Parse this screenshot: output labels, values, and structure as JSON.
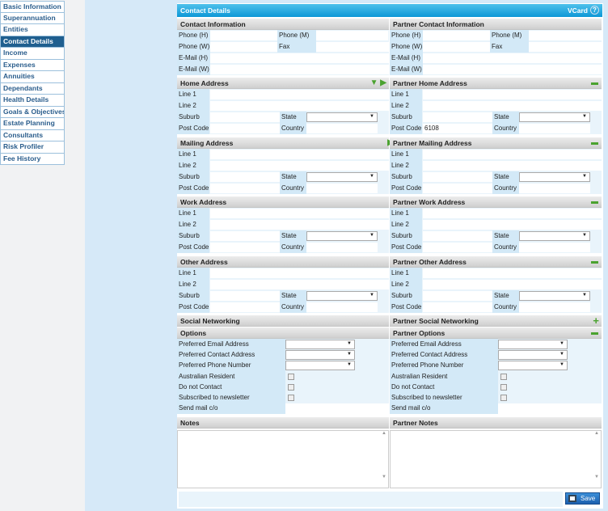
{
  "sidebar": {
    "items": [
      "Basic Information",
      "Superannuation",
      "Entities",
      "Contact Details",
      "Income",
      "Expenses",
      "Annuities",
      "Dependants",
      "Health Details",
      "Goals & Objectives",
      "Estate Planning",
      "Consultants",
      "Risk Profiler",
      "Fee History"
    ],
    "active": "Contact Details"
  },
  "title": "Contact Details",
  "vcard": "VCard",
  "help": "?",
  "contact": {
    "left_title": "Contact Information",
    "right_title": "Partner Contact Information",
    "phone_h": "Phone (H)",
    "phone_m": "Phone (M)",
    "phone_w": "Phone (W)",
    "fax": "Fax",
    "email_h": "E-Mail (H)",
    "email_w": "E-Mail (W)"
  },
  "address_labels": {
    "line1": "Line 1",
    "line2": "Line 2",
    "suburb": "Suburb",
    "state": "State",
    "postcode": "Post Code",
    "country": "Country"
  },
  "addresses": [
    {
      "left": "Home Address",
      "right": "Partner Home Address",
      "left_icon": "expand",
      "right_postcode": "6108"
    },
    {
      "left": "Mailing Address",
      "right": "Partner Mailing Address",
      "left_icon": "arrow"
    },
    {
      "left": "Work Address",
      "right": "Partner Work Address"
    },
    {
      "left": "Other Address",
      "right": "Partner Other Address"
    }
  ],
  "social": {
    "left": "Social Networking",
    "right": "Partner Social Networking"
  },
  "options": {
    "left": "Options",
    "right": "Partner Options",
    "pref_email": "Preferred Email Address",
    "pref_contact": "Preferred Contact Address",
    "pref_phone": "Preferred Phone Number",
    "resident": "Australian Resident",
    "no_contact": "Do not Contact",
    "newsletter": "Subscribed to newsletter",
    "send_mail": "Send mail c/o"
  },
  "notes": {
    "left": "Notes",
    "right": "Partner Notes"
  },
  "save": "Save"
}
